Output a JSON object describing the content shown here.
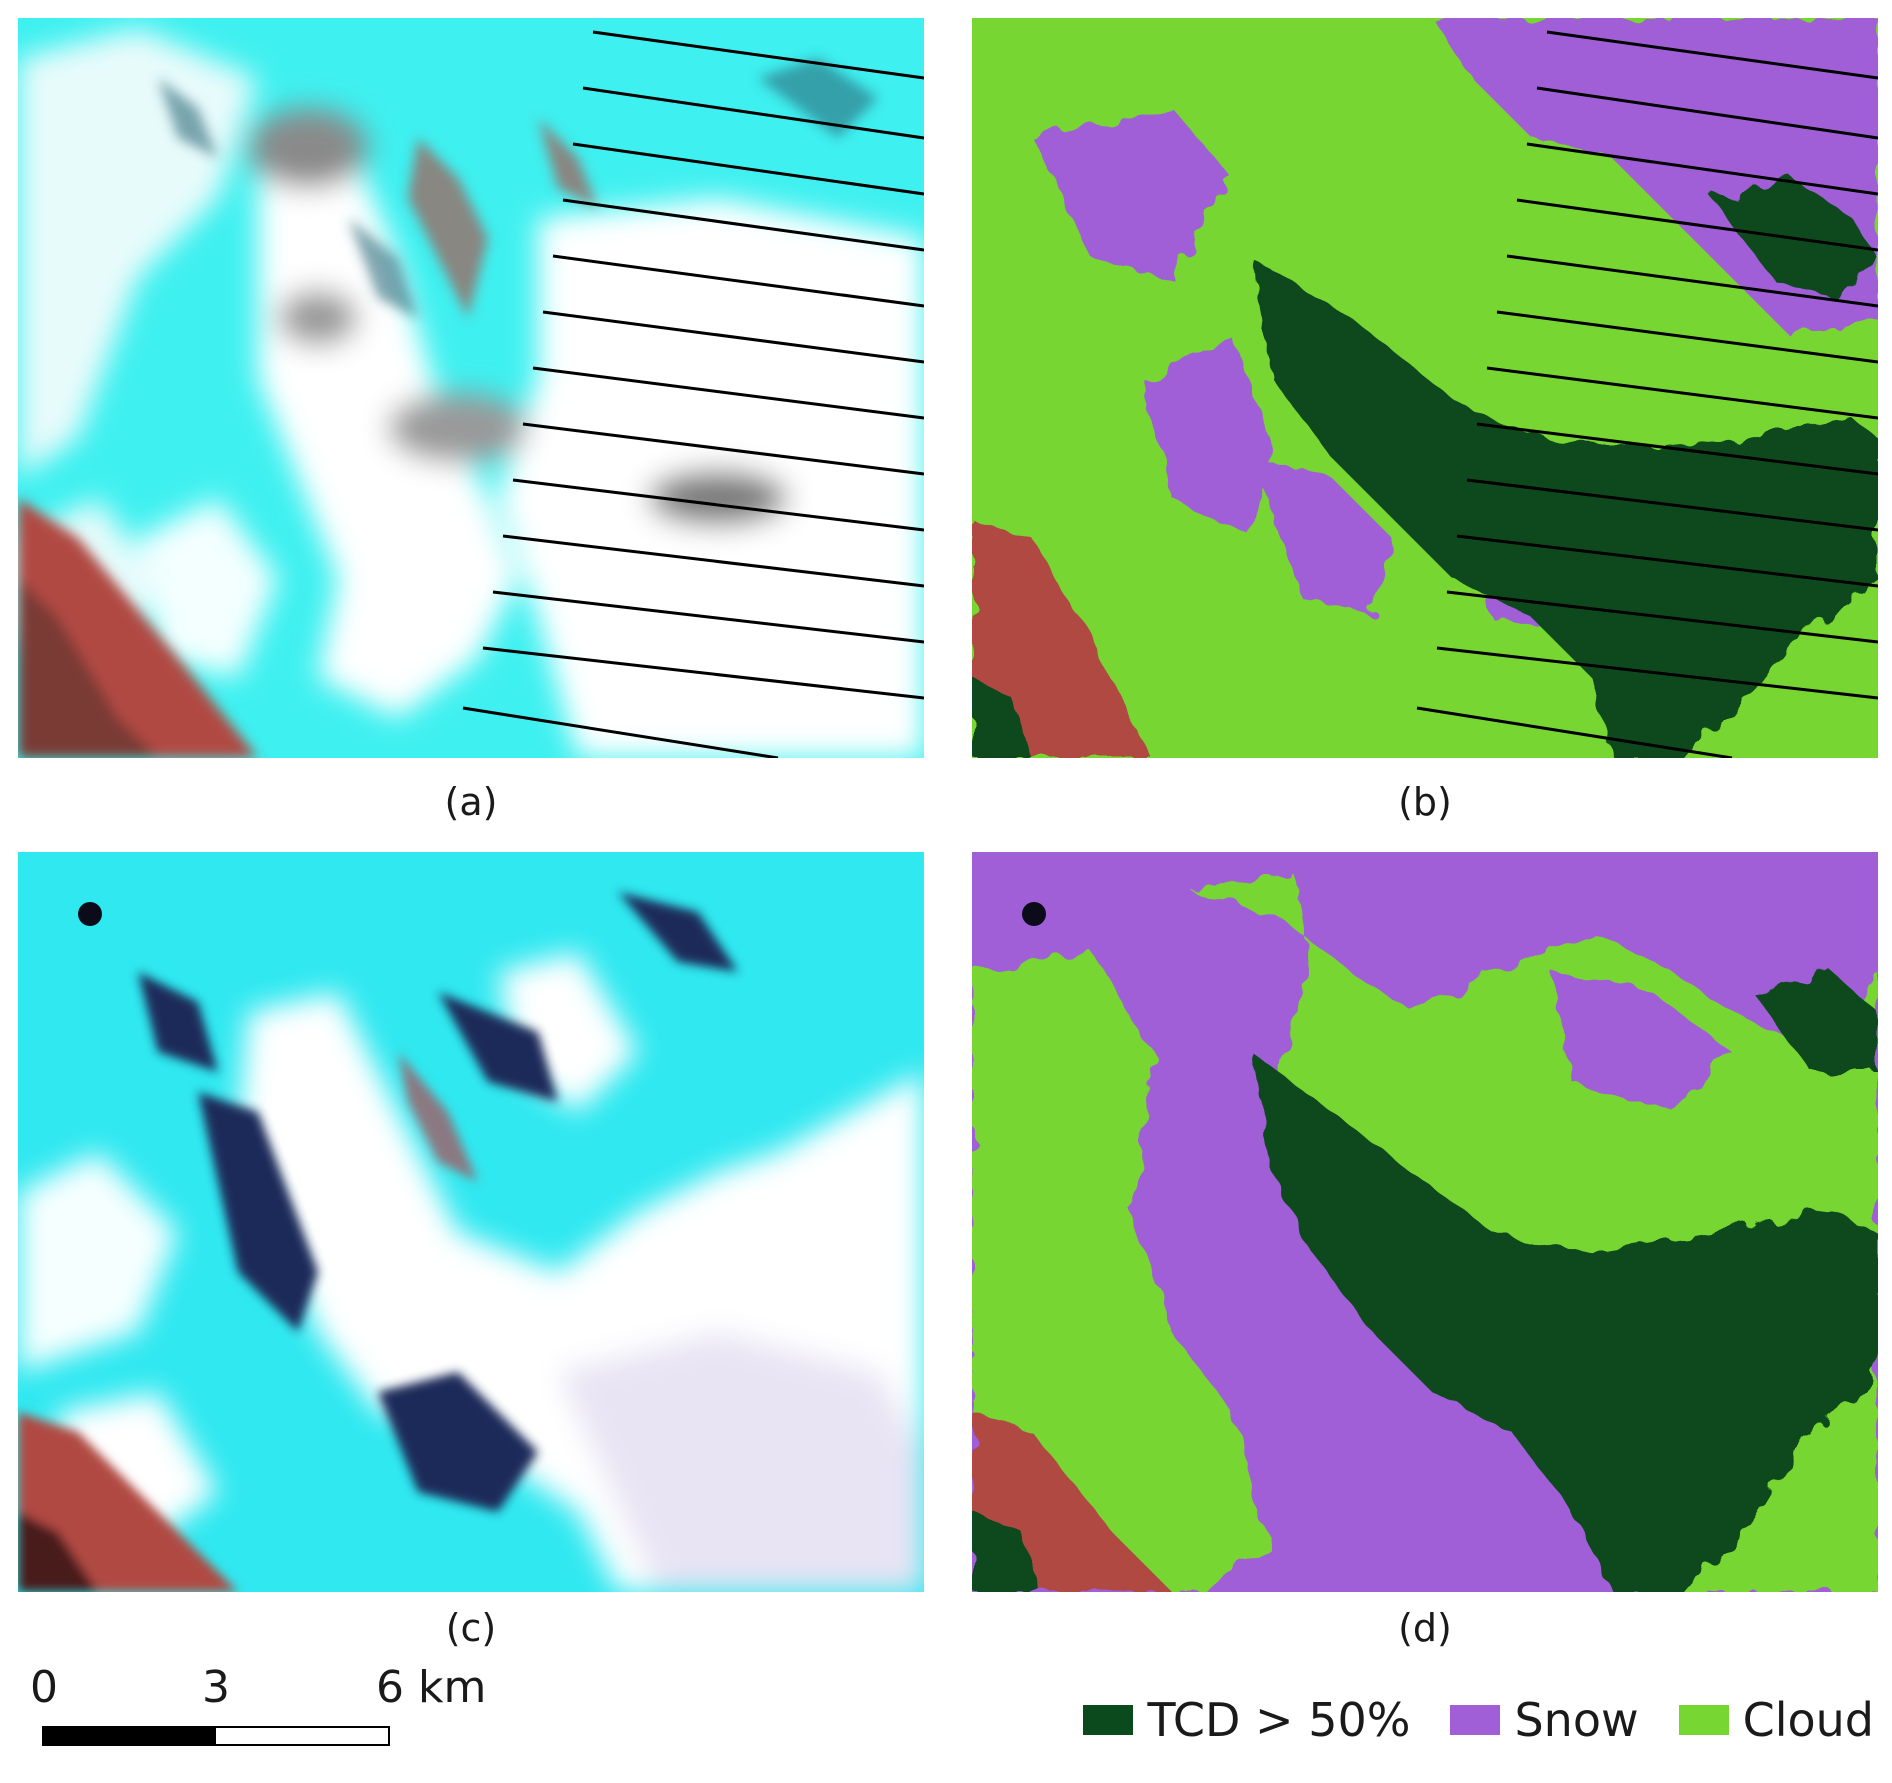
{
  "panels": [
    {
      "id": "a",
      "caption": "(a)"
    },
    {
      "id": "b",
      "caption": "(b)"
    },
    {
      "id": "c",
      "caption": "(c)"
    },
    {
      "id": "d",
      "caption": "(d)"
    }
  ],
  "scale_bar": {
    "labels": [
      "0",
      "3",
      "6 km"
    ]
  },
  "legend": {
    "items": [
      {
        "label": "TCD > 50%",
        "color": "#0a4a1c"
      },
      {
        "label": "Snow",
        "color": "#a05fd6"
      },
      {
        "label": "Cloud",
        "color": "#78d632"
      }
    ]
  },
  "colors": {
    "snow_cyan": "#3ff0f0",
    "cloud_white": "#ffffff",
    "terrain_red": "#b04a42",
    "shadow_dark": "#1a2a4a",
    "scanline": "#000000"
  }
}
